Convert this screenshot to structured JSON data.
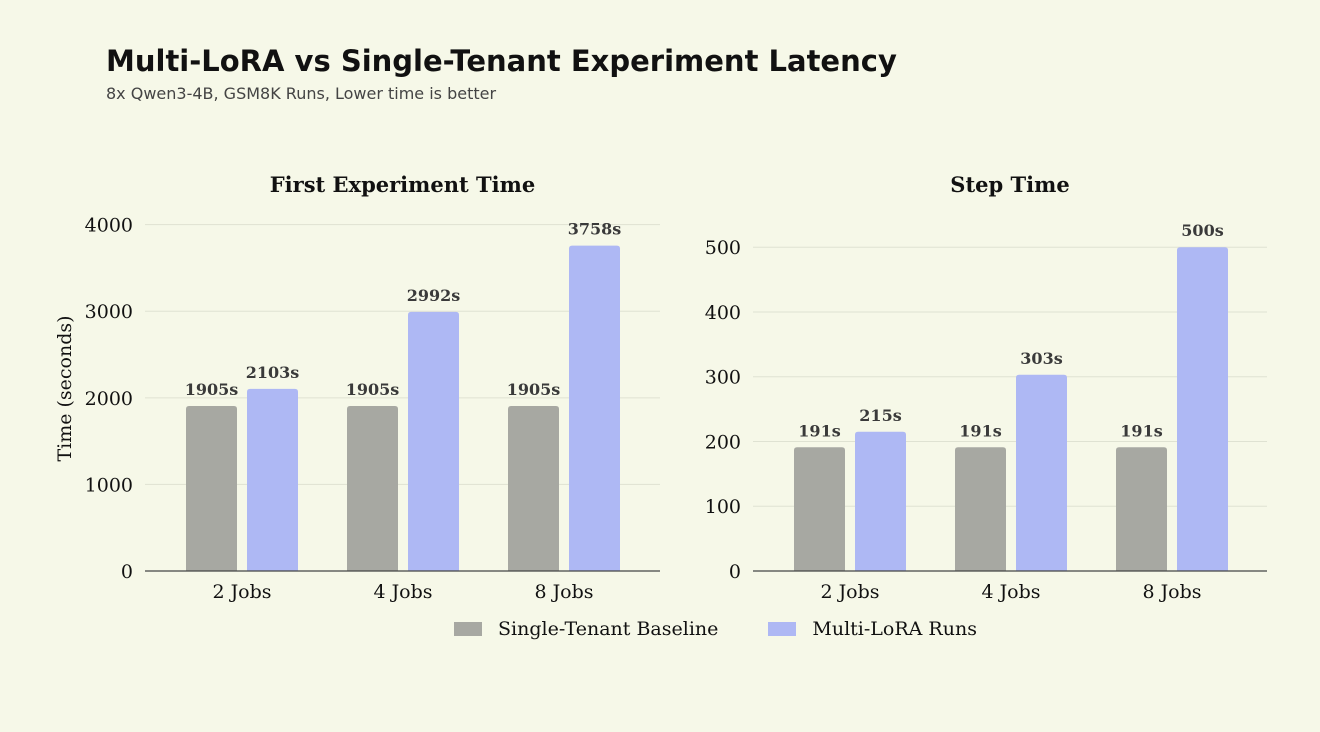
{
  "title": "Multi-LoRA vs Single-Tenant Experiment Latency",
  "subtitle": "8x Qwen3-4B, GSM8K Runs, Lower time is better",
  "colors": {
    "baseline": "#a7a8a2",
    "multilora": "#aeb8f4",
    "grid": "#dfe2d2",
    "axis": "#444444"
  },
  "legend": [
    {
      "label": "Single-Tenant Baseline",
      "color": "#a7a8a2"
    },
    {
      "label": "Multi-LoRA Runs",
      "color": "#aeb8f4"
    }
  ],
  "chart_data": [
    {
      "type": "bar",
      "title": "First Experiment Time",
      "ylabel": "Time (seconds)",
      "xlabel": "",
      "categories": [
        "2 Jobs",
        "4 Jobs",
        "8 Jobs"
      ],
      "ylim": [
        0,
        4250
      ],
      "yticks": [
        0,
        1000,
        2000,
        3000,
        4000
      ],
      "grid": true,
      "series": [
        {
          "name": "Single-Tenant Baseline",
          "values": [
            1905,
            1905,
            1905
          ],
          "labels": [
            "1905s",
            "1905s",
            "1905s"
          ]
        },
        {
          "name": "Multi-LoRA Runs",
          "values": [
            2103,
            2992,
            3758
          ],
          "labels": [
            "2103s",
            "2992s",
            "3758s"
          ]
        }
      ]
    },
    {
      "type": "bar",
      "title": "Step Time",
      "ylabel": "",
      "xlabel": "",
      "categories": [
        "2 Jobs",
        "4 Jobs",
        "8 Jobs"
      ],
      "ylim": [
        0,
        525
      ],
      "yticks": [
        0,
        100,
        200,
        300,
        400,
        500
      ],
      "grid": true,
      "series": [
        {
          "name": "Single-Tenant Baseline",
          "values": [
            191,
            191,
            191
          ],
          "labels": [
            "191s",
            "191s",
            "191s"
          ]
        },
        {
          "name": "Multi-LoRA Runs",
          "values": [
            215,
            303,
            500
          ],
          "labels": [
            "215s",
            "303s",
            "500s"
          ]
        }
      ]
    }
  ]
}
